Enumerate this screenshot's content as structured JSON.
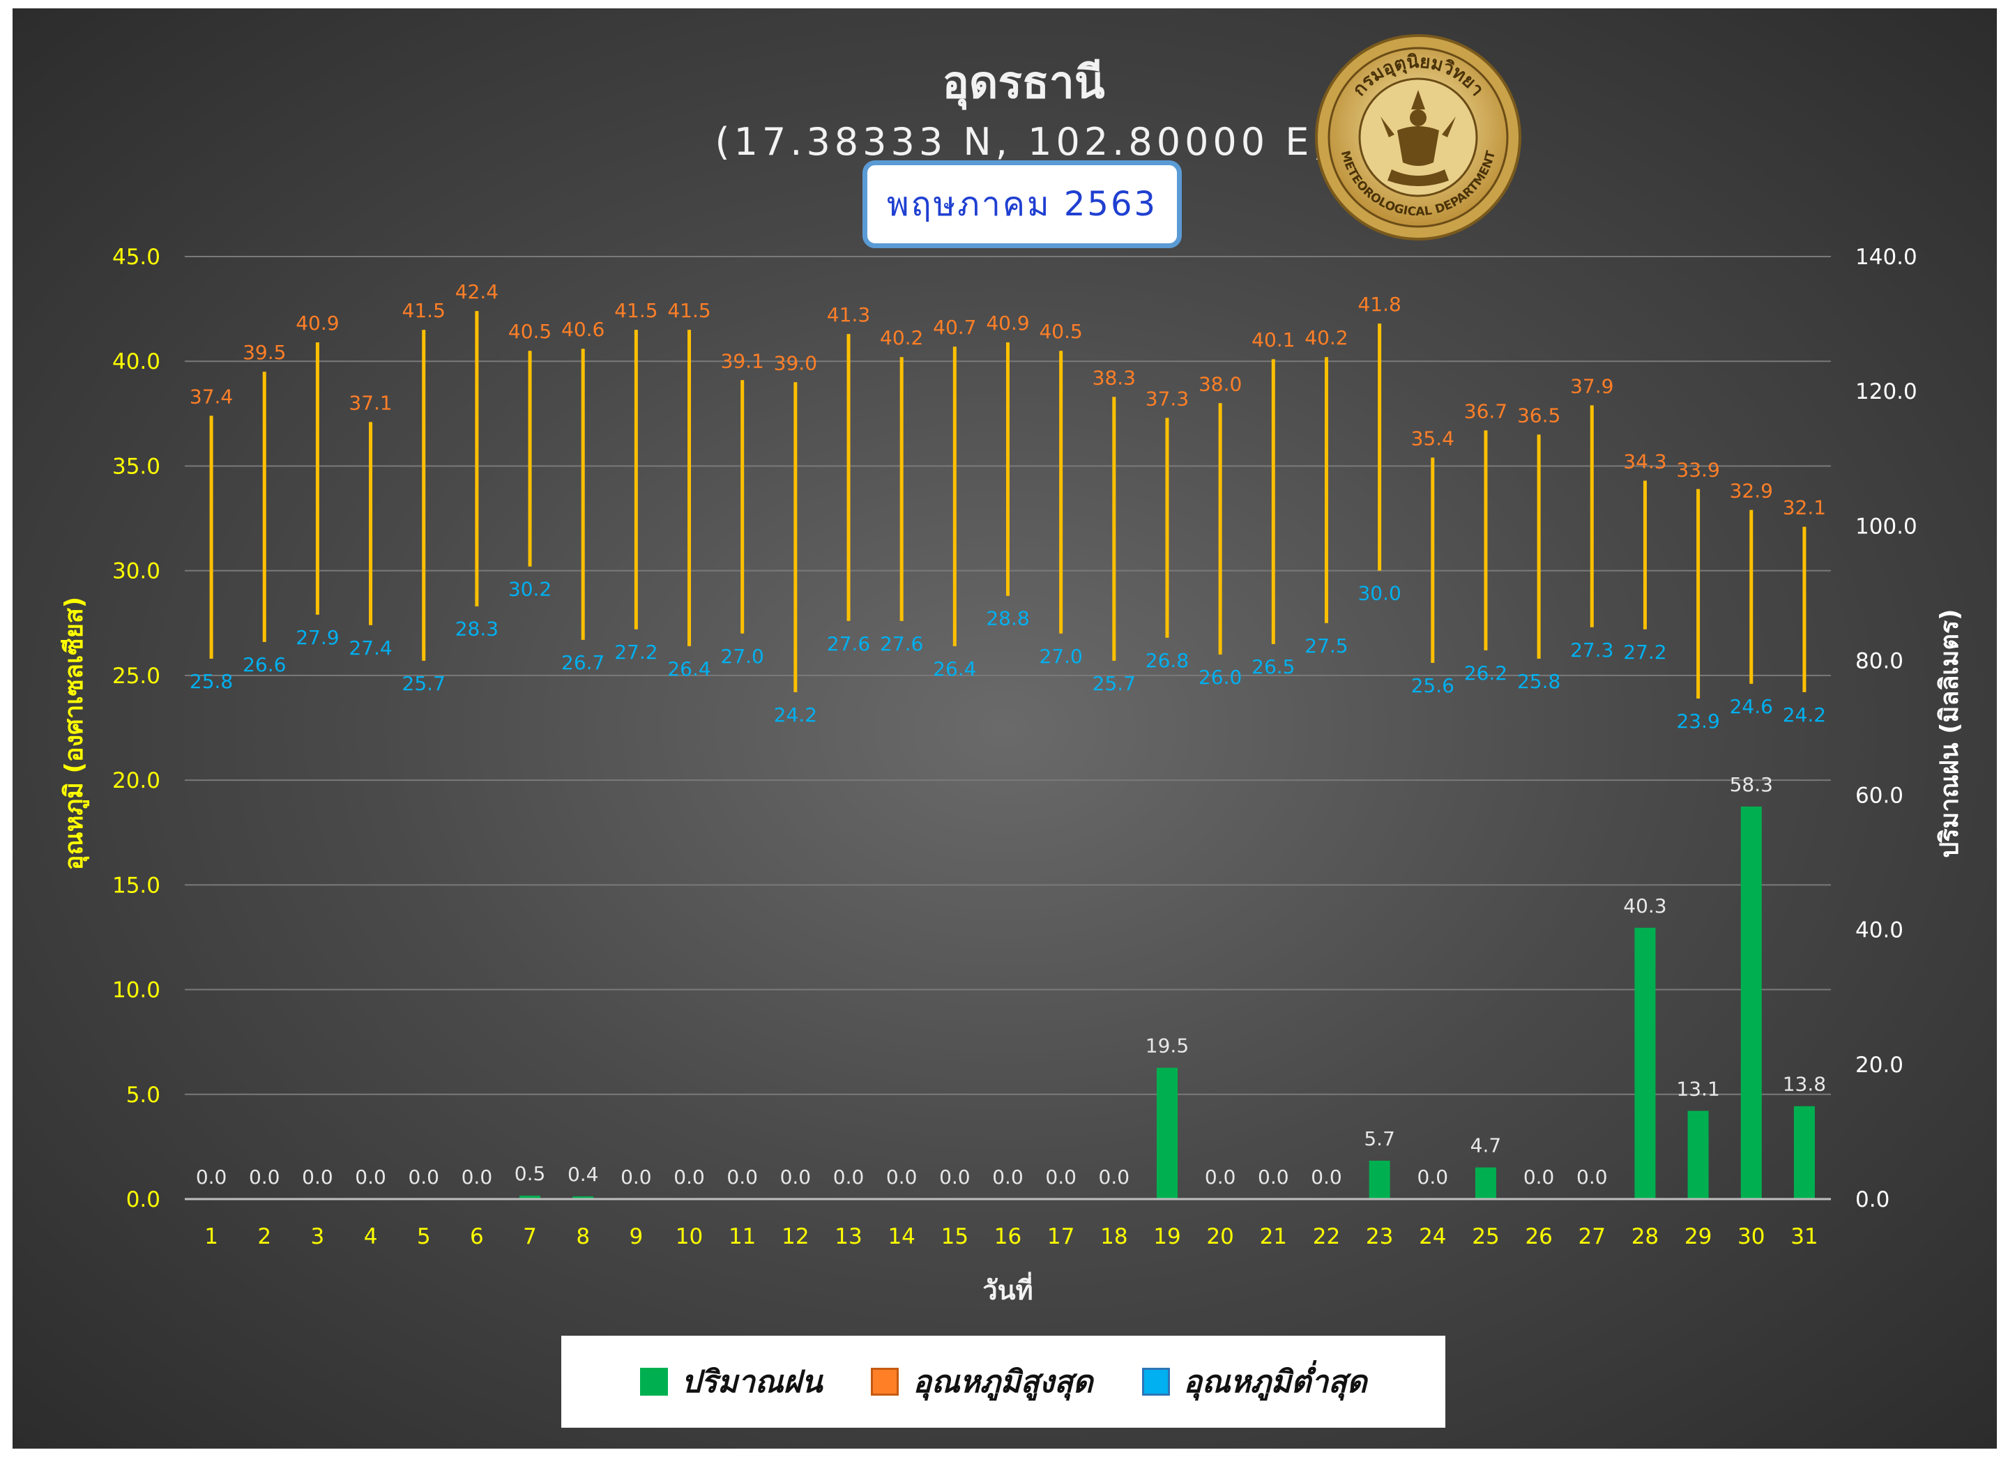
{
  "header": {
    "title": "อุดรธานี",
    "subtitle": "(17.38333 N, 102.80000 E)",
    "month_badge": "พฤษภาคม 2563"
  },
  "logo": {
    "top_text": "กรมอุตุนิยมวิทยา",
    "bottom_text": "METEOROLOGICAL DEPARTMENT",
    "ring_color": "#c9a24a"
  },
  "colors": {
    "rain": "#00b050",
    "tmax": "#ff7f27",
    "tmin": "#00b0f0",
    "range_line": "#ffc000",
    "left_axis": "#ffff00",
    "right_axis": "#ffffff",
    "rain_label": "#e8e8e8",
    "grid": "#7a7a7a"
  },
  "legend": {
    "items": [
      {
        "key": "rain",
        "label": "ปริมาณฝน"
      },
      {
        "key": "tmax",
        "label": "อุณหภูมิสูงสุด"
      },
      {
        "key": "tmin",
        "label": "อุณหภูมิต่ำสุด"
      }
    ]
  },
  "chart_data": {
    "type": "bar",
    "xlabel": "วันที่",
    "ylabel": "อุณหภูมิ (องศาเซลเซียส)",
    "ylabel_right": "ปริมาณฝน (มิลลิเมตร)",
    "ylim": [
      0,
      45
    ],
    "ylim_right": [
      0,
      140
    ],
    "yticks": [
      "0.0",
      "5.0",
      "10.0",
      "15.0",
      "20.0",
      "25.0",
      "30.0",
      "35.0",
      "40.0",
      "45.0"
    ],
    "yticks_right": [
      "0.0",
      "20.0",
      "40.0",
      "60.0",
      "80.0",
      "100.0",
      "120.0",
      "140.0"
    ],
    "grid": true,
    "legend_position": "bottom",
    "categories": [
      "1",
      "2",
      "3",
      "4",
      "5",
      "6",
      "7",
      "8",
      "9",
      "10",
      "11",
      "12",
      "13",
      "14",
      "15",
      "16",
      "17",
      "18",
      "19",
      "20",
      "21",
      "22",
      "23",
      "24",
      "25",
      "26",
      "27",
      "28",
      "29",
      "30",
      "31"
    ],
    "series": [
      {
        "name": "ปริมาณฝน",
        "type": "bar",
        "axis": "right",
        "values": [
          0.0,
          0.0,
          0.0,
          0.0,
          0.0,
          0.0,
          0.5,
          0.4,
          0.0,
          0.0,
          0.0,
          0.0,
          0.0,
          0.0,
          0.0,
          0.0,
          0.0,
          0.0,
          19.5,
          0.0,
          0.0,
          0.0,
          5.7,
          0.0,
          4.7,
          0.0,
          0.0,
          40.3,
          13.1,
          58.3,
          13.8
        ]
      },
      {
        "name": "อุณหภูมิสูงสุด",
        "type": "marker",
        "axis": "left",
        "values": [
          37.4,
          39.5,
          40.9,
          37.1,
          41.5,
          42.4,
          40.5,
          40.6,
          41.5,
          41.5,
          39.1,
          39.0,
          41.3,
          40.2,
          40.7,
          40.9,
          40.5,
          38.3,
          37.3,
          38.0,
          40.1,
          40.2,
          41.8,
          35.4,
          36.7,
          36.5,
          37.9,
          34.3,
          33.9,
          32.9,
          32.1
        ]
      },
      {
        "name": "อุณหภูมิต่ำสุด",
        "type": "marker",
        "axis": "left",
        "values": [
          25.8,
          26.6,
          27.9,
          27.4,
          25.7,
          28.3,
          30.2,
          26.7,
          27.2,
          26.4,
          27.0,
          24.2,
          27.6,
          27.6,
          26.4,
          28.8,
          27.0,
          25.7,
          26.8,
          26.0,
          26.5,
          27.5,
          30.0,
          25.6,
          26.2,
          25.8,
          27.3,
          27.2,
          23.9,
          24.6,
          24.2
        ]
      }
    ]
  }
}
